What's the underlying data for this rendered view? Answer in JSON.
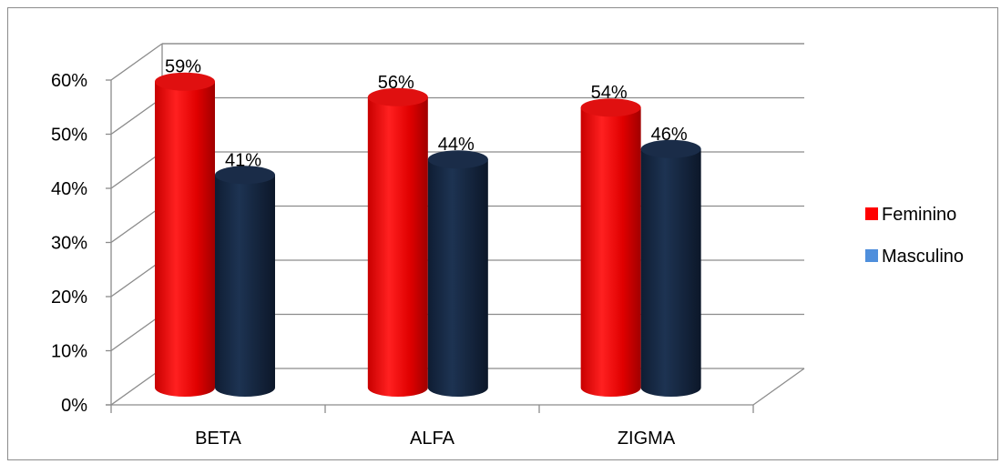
{
  "chart_data": {
    "type": "bar",
    "style": "3d-cylinder",
    "categories": [
      "BETA",
      "ALFA",
      "ZIGMA"
    ],
    "series": [
      {
        "name": "Feminino",
        "values": [
          59,
          56,
          54
        ],
        "labels": [
          "59%",
          "56%",
          "54%"
        ],
        "color": "#ff0000",
        "legend_color": "#ff0000"
      },
      {
        "name": "Masculino",
        "values": [
          41,
          44,
          46
        ],
        "labels": [
          "41%",
          "44%",
          "46%"
        ],
        "color": "#172a45",
        "legend_color": "#4f8fdc"
      }
    ],
    "yticks": [
      "0%",
      "10%",
      "20%",
      "30%",
      "40%",
      "50%",
      "60%"
    ],
    "ylim": [
      0,
      60
    ],
    "grid": true,
    "legend_position": "right"
  }
}
